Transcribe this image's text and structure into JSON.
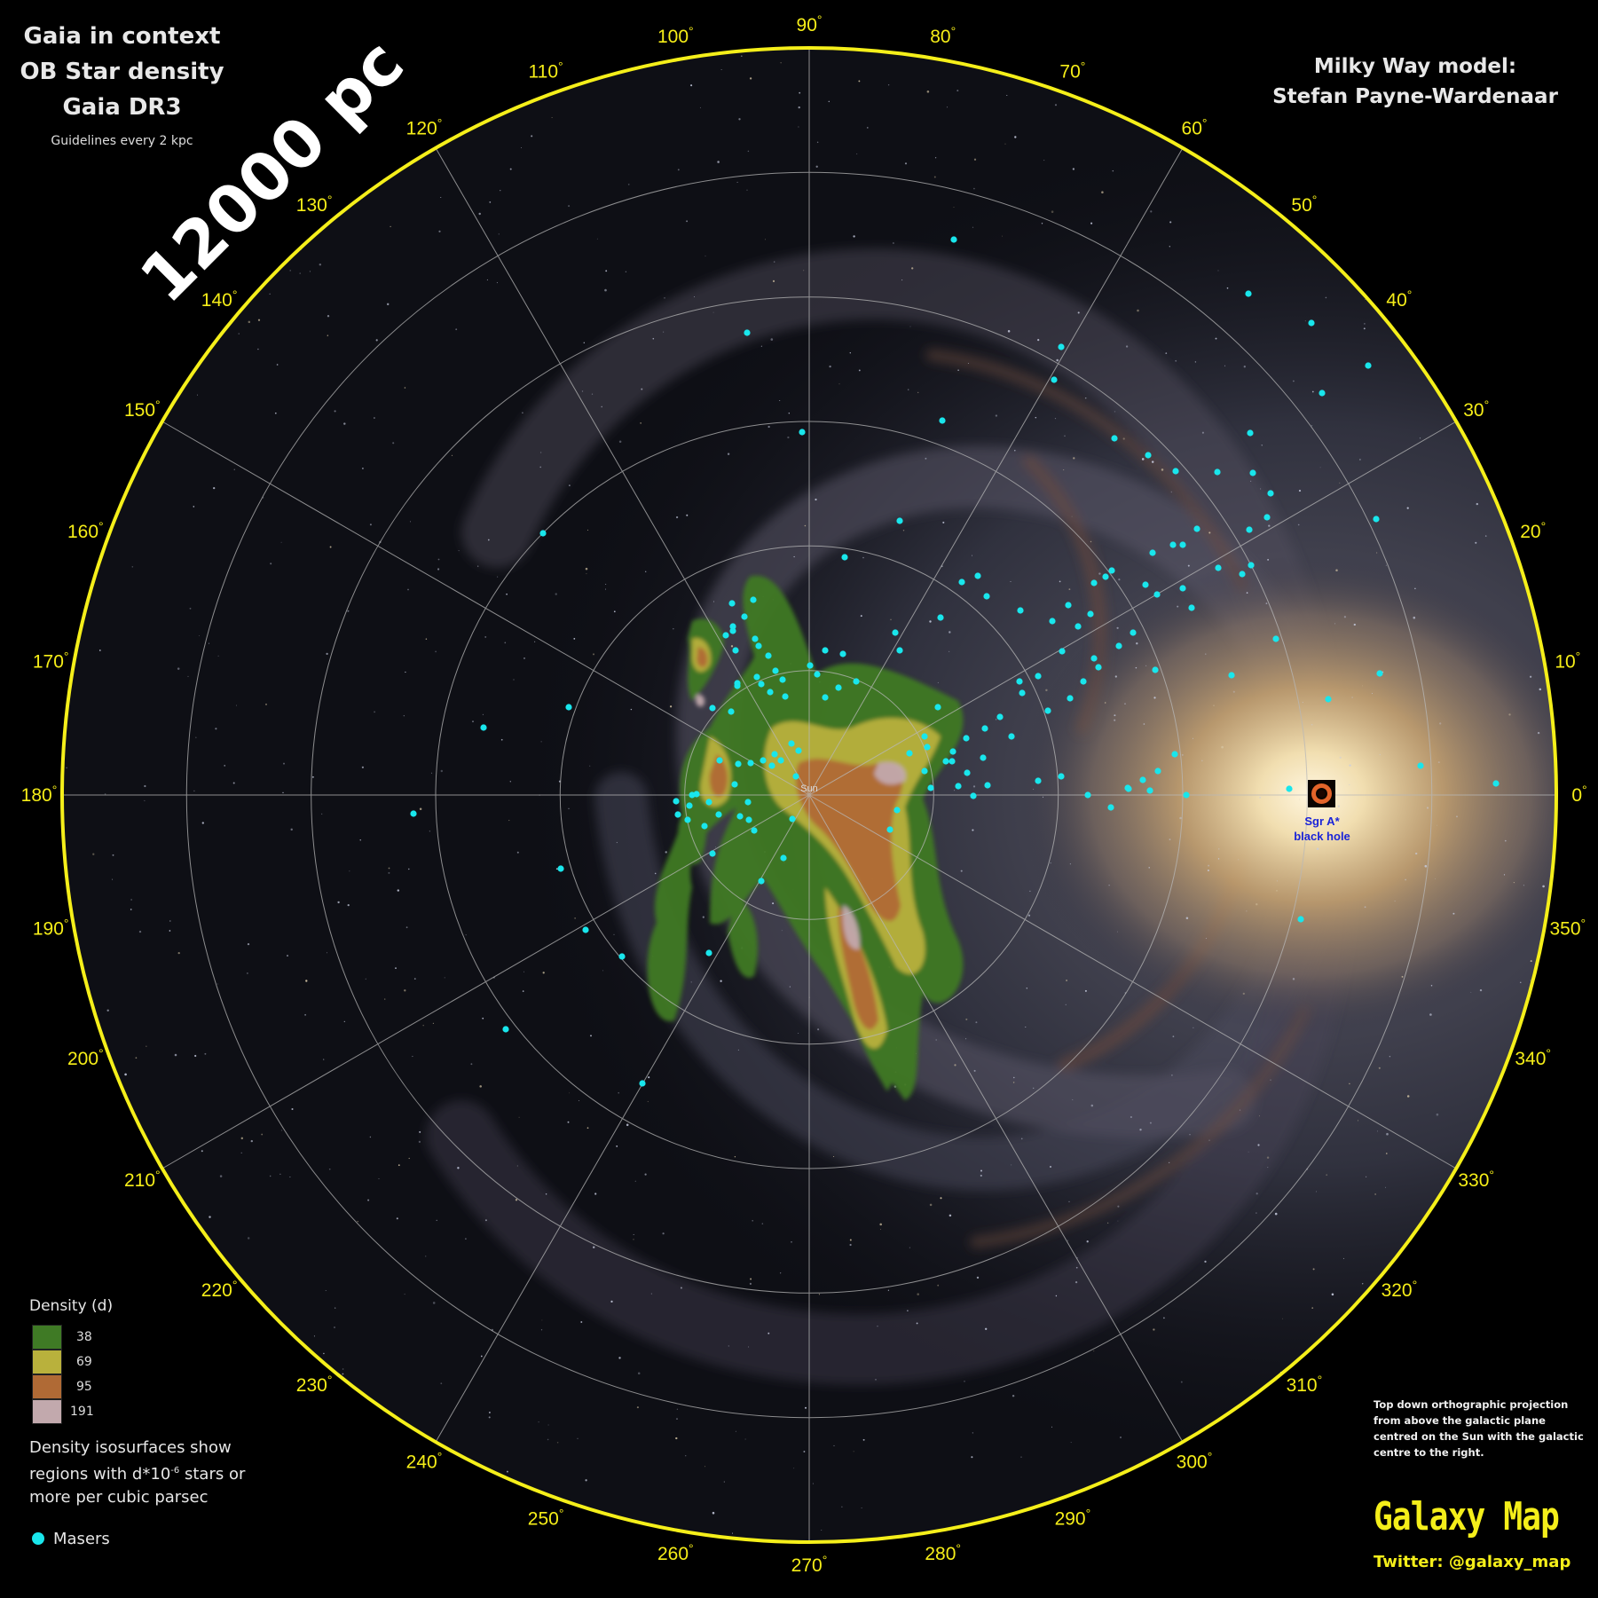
{
  "title": {
    "line1": "Gaia in context",
    "line2": "OB Star density",
    "line3": "Gaia DR3",
    "subtitle": "Guidelines every 2 kpc"
  },
  "scale_label": "12000 pc",
  "credit": {
    "line1": "Milky Way model:",
    "line2": "Stefan Payne-Wardenaar"
  },
  "map": {
    "sun_label": "Sun",
    "sgr_label_1": "Sgr A*",
    "sgr_label_2": "black hole",
    "longitude_labels": [
      "0",
      "10",
      "20",
      "30",
      "40",
      "50",
      "60",
      "70",
      "80",
      "90",
      "100",
      "110",
      "120",
      "130",
      "140",
      "150",
      "160",
      "170",
      "180",
      "190",
      "200",
      "210",
      "220",
      "230",
      "240",
      "250",
      "260",
      "270",
      "280",
      "290",
      "300",
      "310",
      "320",
      "330",
      "340",
      "350"
    ],
    "degree_symbol": "°",
    "ring_spacing_kpc": 2,
    "spoke_spacing_deg": 30,
    "colors": {
      "boundary": "#f5ef1a",
      "grid": "#b8b8b8",
      "maser": "#19e6ec",
      "bulge": "#d9c08a"
    }
  },
  "legend": {
    "title": "Density (d)",
    "items": [
      {
        "value": "38",
        "color": "#3f7a25"
      },
      {
        "value": "69",
        "color": "#b9b13c"
      },
      {
        "value": "95",
        "color": "#b06a35"
      },
      {
        "value": "191",
        "color": "#c2a9ad"
      }
    ],
    "description_1": "Density isosurfaces show",
    "description_2a": "regions with d*10",
    "description_2sup": "-6",
    "description_2b": " stars or",
    "description_3": "more per cubic parsec",
    "masers_label": "Masers"
  },
  "projection_note": "Top down orthographic projection from above the galactic plane centred on the Sun with the galactic centre to the right.",
  "brand": "Galaxy Map",
  "twitter": "Twitter: @galaxy_map"
}
